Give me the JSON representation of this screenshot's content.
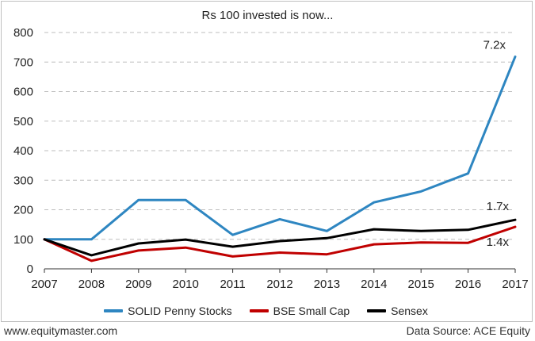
{
  "chart_data": {
    "type": "line",
    "title": "Rs 100 invested is now...",
    "x": [
      "2007",
      "2008",
      "2009",
      "2010",
      "2011",
      "2012",
      "2013",
      "2014",
      "2015",
      "2016",
      "2017"
    ],
    "ylim": [
      0,
      800
    ],
    "yticks": [
      0,
      100,
      200,
      300,
      400,
      500,
      600,
      700,
      800
    ],
    "grid": "horizontal dashed",
    "legend_position": "bottom",
    "series": [
      {
        "name": "SOLID Penny Stocks",
        "color": "#2e86c1",
        "values": [
          100,
          100,
          233,
          233,
          115,
          168,
          128,
          225,
          262,
          323,
          718
        ],
        "end_label": "7.2x"
      },
      {
        "name": "BSE Small Cap",
        "color": "#c00000",
        "values": [
          100,
          27,
          62,
          72,
          42,
          55,
          49,
          83,
          89,
          88,
          142
        ],
        "end_label": "1.4x"
      },
      {
        "name": "Sensex",
        "color": "#000000",
        "values": [
          100,
          46,
          86,
          99,
          75,
          94,
          104,
          134,
          128,
          132,
          166
        ],
        "end_label": "1.7x"
      }
    ]
  },
  "footer": {
    "site": "www.equitymaster.com",
    "source": "Data Source: ACE Equity"
  }
}
